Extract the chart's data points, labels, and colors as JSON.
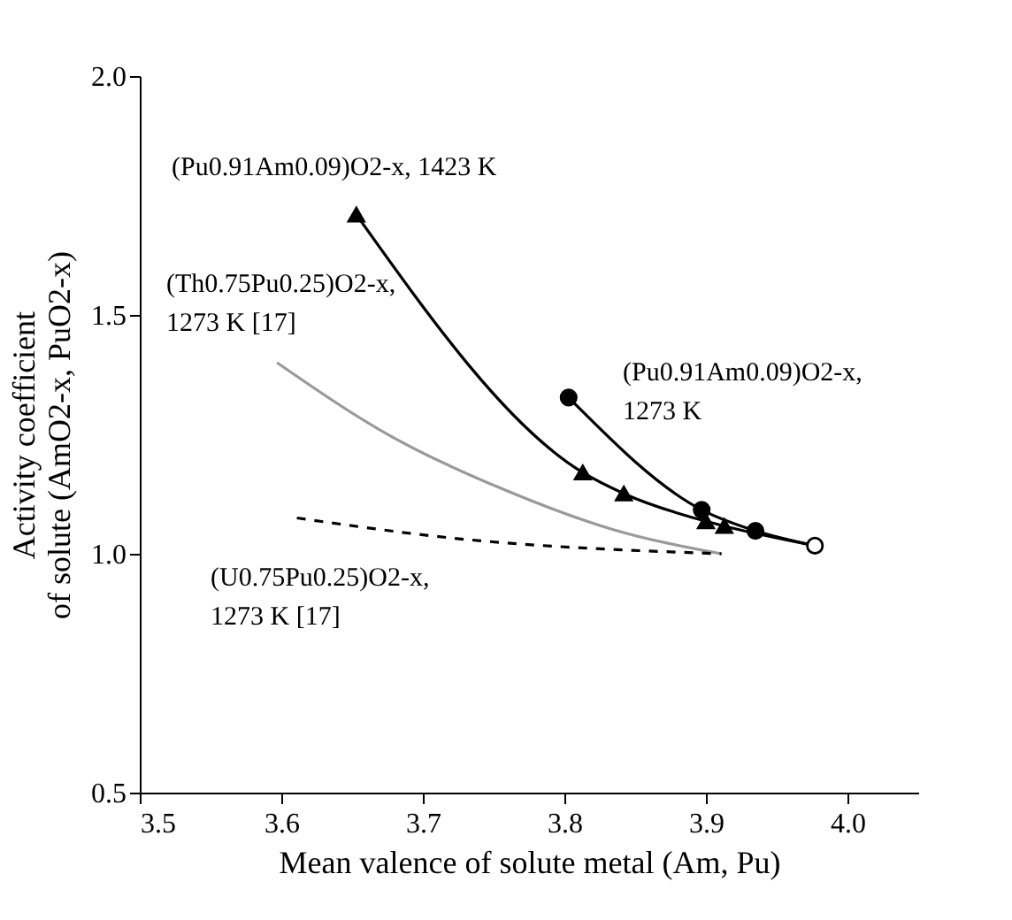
{
  "chart_data": {
    "type": "line",
    "xlabel": "Mean valence of solute metal (Am, Pu)",
    "ylabel": "Activity coefficient\nof solute (AmO2-x, PuO2-x)",
    "xlim": [
      3.5,
      4.05
    ],
    "xticks": [
      {
        "value": 3.5,
        "label": "3.5"
      },
      {
        "value": 3.6,
        "label": "3.6"
      },
      {
        "value": 3.7,
        "label": "3.7"
      },
      {
        "value": 3.8,
        "label": "3.8"
      },
      {
        "value": 3.9,
        "label": "3.9"
      },
      {
        "value": 4.0,
        "label": "4.0"
      }
    ],
    "ylim": [
      0.5,
      2.0
    ],
    "yticks": [
      {
        "value": 0.5,
        "label": "0.5"
      },
      {
        "value": 1.0,
        "label": "1.0"
      },
      {
        "value": 1.5,
        "label": "1.5"
      },
      {
        "value": 2.0,
        "label": "2.0"
      }
    ],
    "grid": false,
    "series": [
      {
        "type": "line",
        "color": "#000000",
        "marker": "none",
        "line_style": "solid",
        "x": [
          3.653,
          3.813,
          3.842,
          3.9,
          3.913,
          3.977
        ],
        "values": [
          1.71,
          1.17,
          1.126,
          1.068,
          1.058,
          1.017
        ]
      },
      {
        "type": "scatter",
        "color": "#000000",
        "marker": "triangle",
        "x": [
          3.653,
          3.813,
          3.842,
          3.9,
          3.913
        ],
        "values": [
          1.71,
          1.17,
          1.126,
          1.068,
          1.058
        ]
      },
      {
        "type": "line",
        "color": "#000000",
        "marker": "none",
        "line_style": "solid",
        "x": [
          3.803,
          3.897,
          3.935,
          3.977
        ],
        "values": [
          1.327,
          1.092,
          1.048,
          1.017
        ]
      },
      {
        "type": "scatter",
        "color": "#000000",
        "marker": "circle",
        "x": [
          3.803,
          3.897,
          3.935
        ],
        "values": [
          1.327,
          1.092,
          1.048
        ]
      },
      {
        "type": "line",
        "color": "#999999",
        "marker": "none",
        "line_style": "solid",
        "x": [
          3.597,
          3.678,
          3.756,
          3.834,
          3.911
        ],
        "values": [
          1.4,
          1.245,
          1.136,
          1.051,
          1.0
        ]
      },
      {
        "type": "line",
        "color": "#000000",
        "marker": "none",
        "line_style": "dashed",
        "x": [
          3.611,
          3.717,
          3.911
        ],
        "values": [
          1.075,
          1.034,
          1.0
        ]
      },
      {
        "type": "scatter",
        "color": "#ffffff",
        "marker": "circle",
        "x": [
          3.977
        ],
        "values": [
          1.017
        ]
      }
    ],
    "annotations": [
      "(Pu0.91Am0.09)O2-x, 1423 K",
      "(Th0.75Pu0.25)O2-x,\n1273 K [17]",
      "(Pu0.91Am0.09)O2-x,\n1273 K",
      "(U0.75Pu0.25)O2-x,\n1273 K [17]"
    ]
  }
}
